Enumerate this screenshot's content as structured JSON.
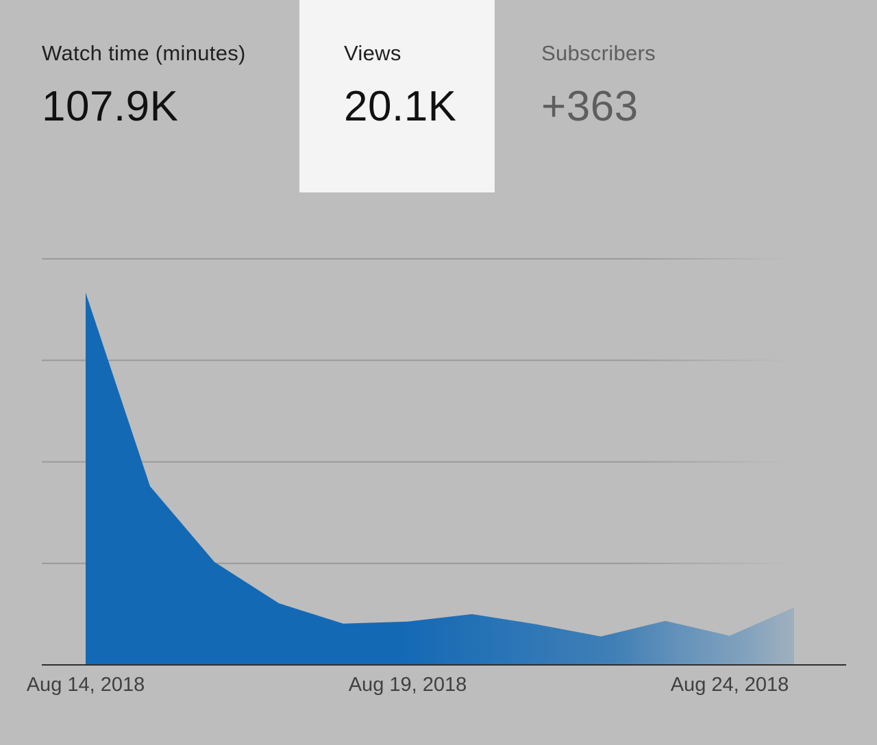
{
  "metrics": {
    "watch_time": {
      "label": "Watch time (minutes)",
      "value": "107.9K"
    },
    "views": {
      "label": "Views",
      "value": "20.1K"
    },
    "subscribers": {
      "label": "Subscribers",
      "value": "+363"
    }
  },
  "selected_metric": "views",
  "colors": {
    "background": "#bdbdbd",
    "selected_tab": "#f4f4f4",
    "series_fill": "#1469b5",
    "gridline": "#9e9e9e"
  },
  "chart_data": {
    "type": "area",
    "x": [
      "Aug 14, 2018",
      "Aug 15, 2018",
      "Aug 16, 2018",
      "Aug 17, 2018",
      "Aug 18, 2018",
      "Aug 19, 2018",
      "Aug 20, 2018",
      "Aug 21, 2018",
      "Aug 22, 2018",
      "Aug 23, 2018",
      "Aug 24, 2018",
      "Aug 25, 2018"
    ],
    "series": [
      {
        "values": [
          5500,
          2640,
          1520,
          910,
          610,
          640,
          750,
          600,
          420,
          650,
          430,
          850
        ]
      }
    ],
    "xticks": [
      "Aug 14, 2018",
      "Aug 19, 2018",
      "Aug 24, 2018"
    ],
    "ylim": [
      0,
      6000
    ],
    "y_gridlines": 4,
    "grid": true,
    "fade_right": true,
    "title": "",
    "xlabel": "",
    "ylabel": ""
  }
}
